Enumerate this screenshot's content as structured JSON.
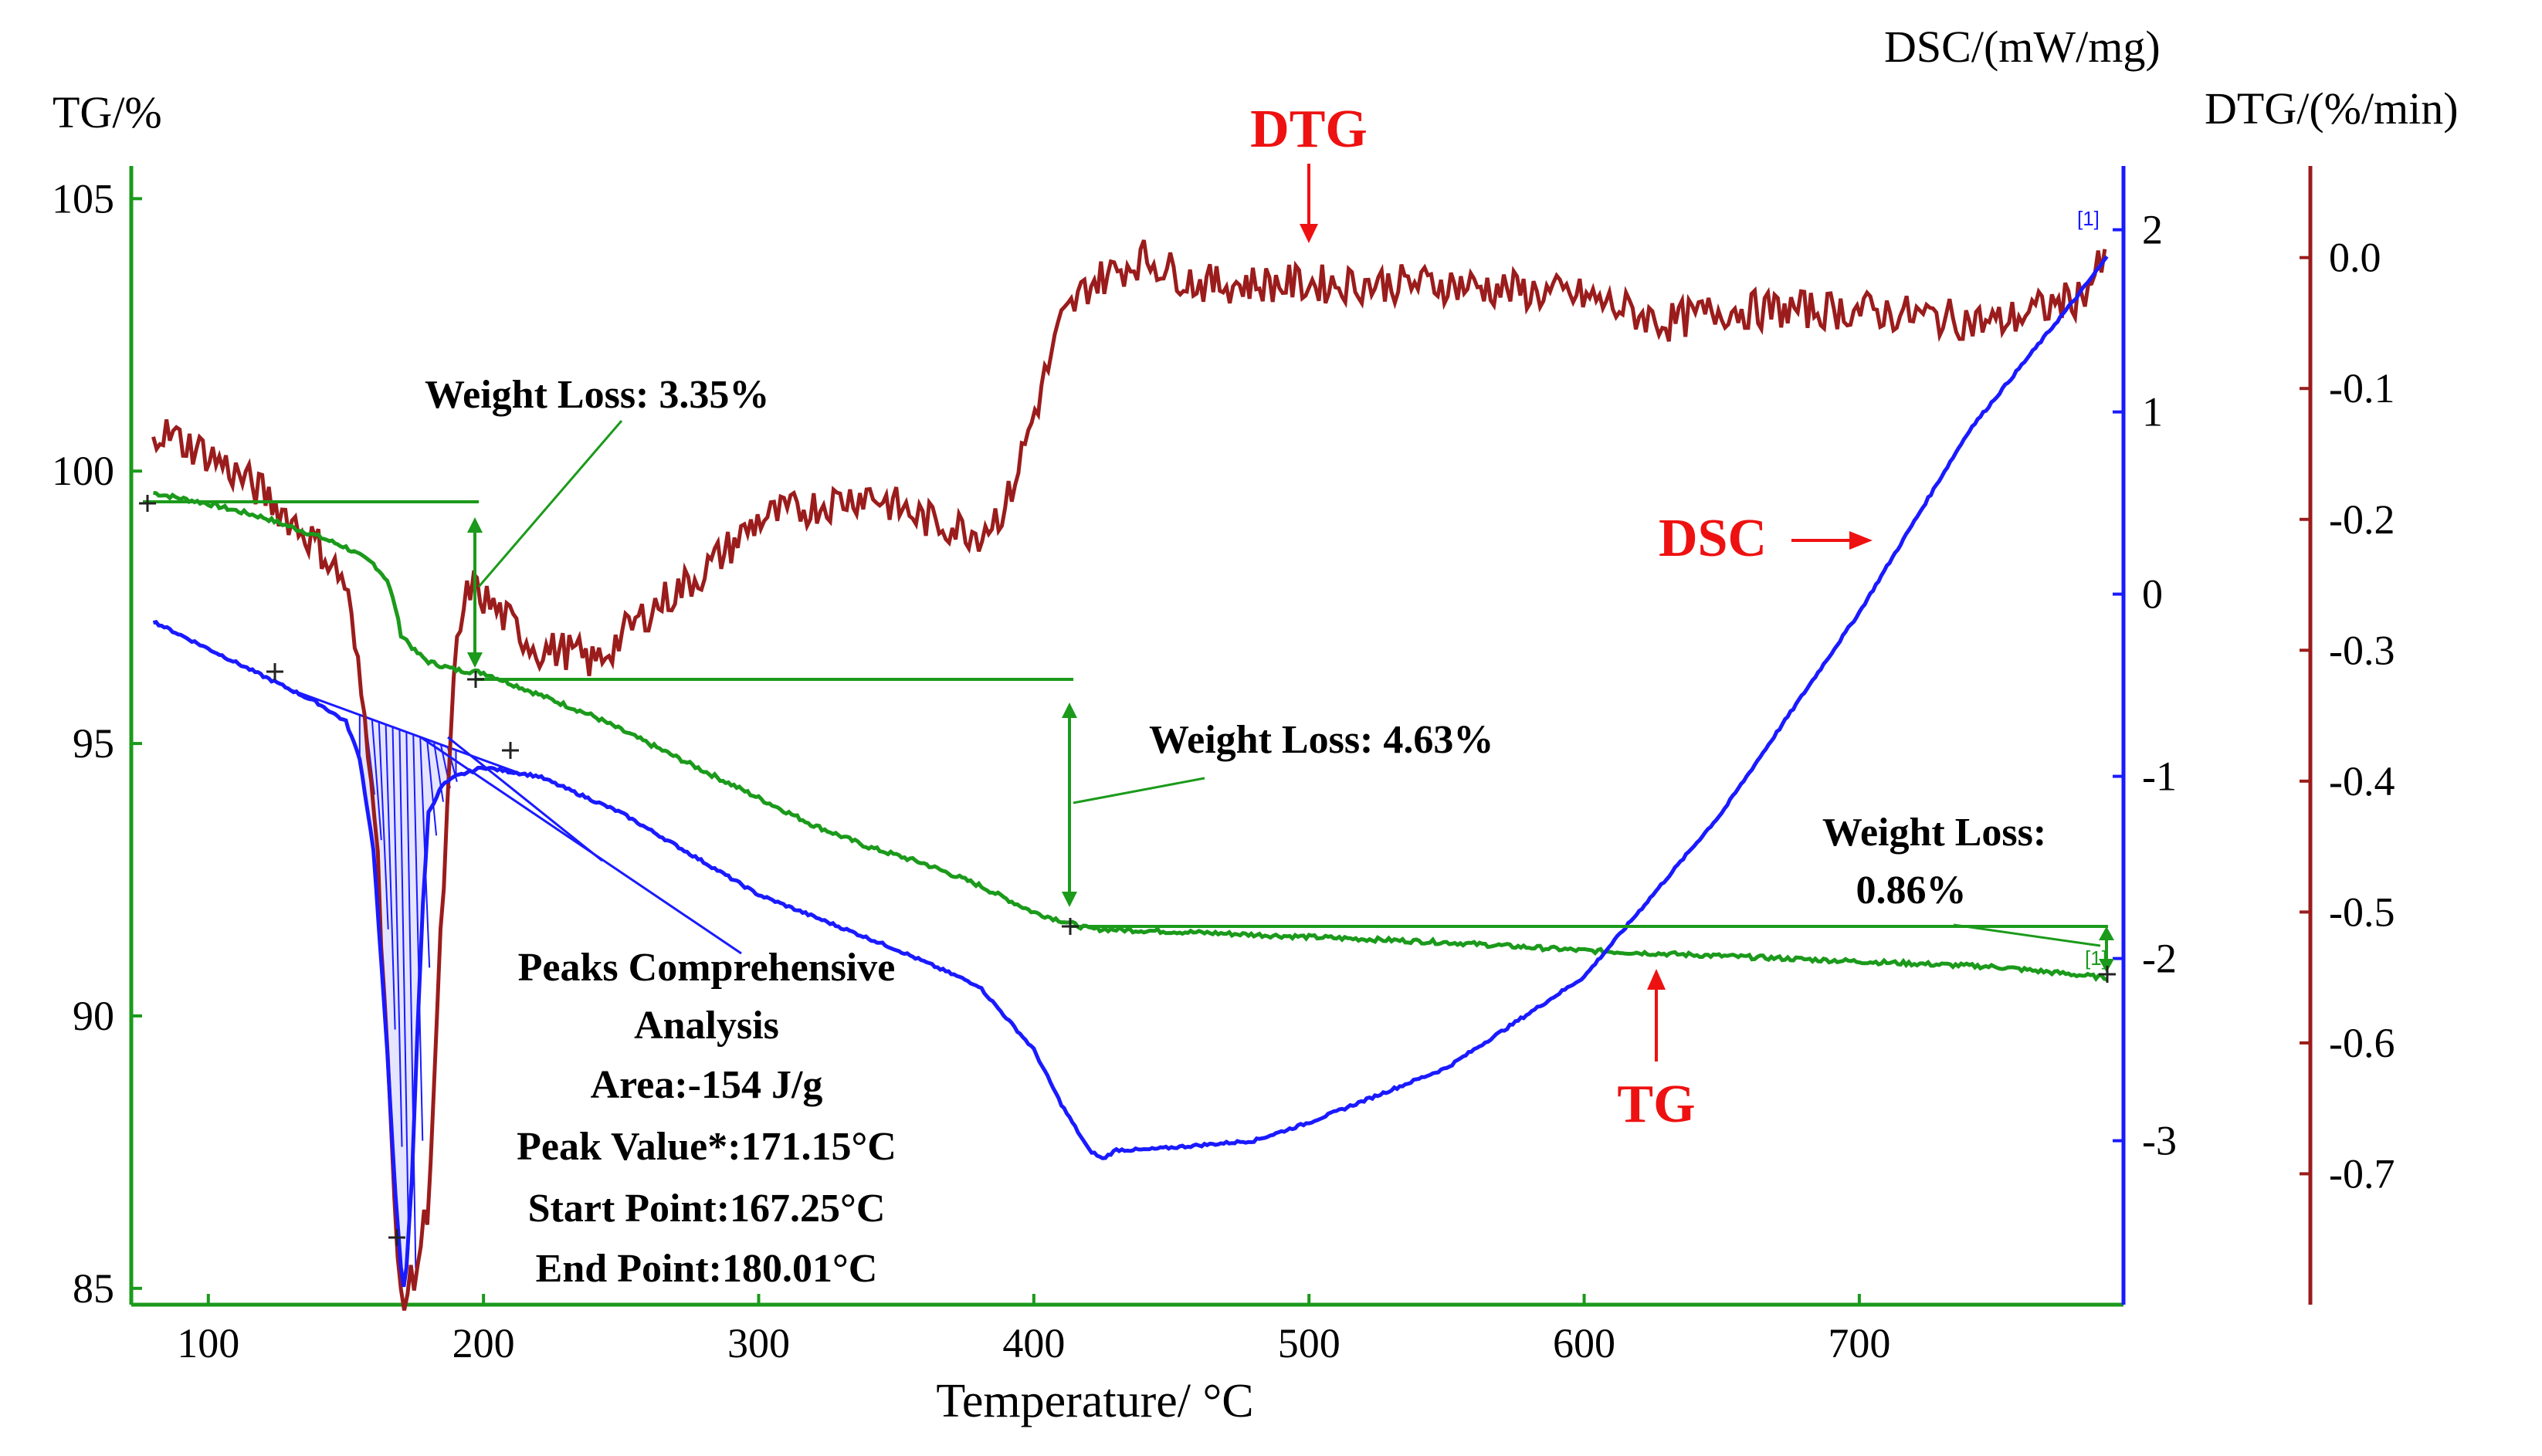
{
  "chart_data": {
    "type": "line",
    "x_axis": {
      "label": "Temperature/ °C",
      "ticks": [
        100,
        200,
        300,
        400,
        500,
        600,
        700
      ],
      "range": [
        72,
        796
      ]
    },
    "axes": {
      "tg": {
        "label": "TG/%",
        "color": "#1b9a1b",
        "ticks": [
          "105",
          "100",
          "95",
          "90",
          "85"
        ],
        "tick_values": [
          105,
          100,
          95,
          90,
          85
        ],
        "range": [
          84.7,
          105.6
        ]
      },
      "dsc": {
        "label": "DSC/(mW/mg)",
        "color": "#1a1aff",
        "ticks": [
          "2",
          "1",
          "0",
          "-1",
          "-2",
          "-3"
        ],
        "tick_values": [
          2,
          1,
          0,
          -1,
          -2,
          -3
        ],
        "range": [
          -3.9,
          2.35
        ]
      },
      "dtg": {
        "label": "DTG/(%/min)",
        "color": "#9b1c1c",
        "ticks": [
          "0.0",
          "-0.1",
          "-0.2",
          "-0.3",
          "-0.4",
          "-0.5",
          "-0.6",
          "-0.7"
        ],
        "tick_values": [
          0.0,
          -0.1,
          -0.2,
          -0.3,
          -0.4,
          -0.5,
          -0.6,
          -0.7
        ],
        "range": [
          -0.8,
          0.07
        ]
      }
    },
    "series": [
      {
        "name": "TG",
        "color": "#1b9a1b",
        "x": [
          80,
          100,
          120,
          140,
          150,
          160,
          165,
          168,
          170,
          172,
          175,
          180,
          190,
          200,
          220,
          240,
          260,
          280,
          300,
          320,
          340,
          360,
          380,
          400,
          410,
          420,
          450,
          500,
          550,
          600,
          650,
          700,
          750,
          790
        ],
        "y": [
          99.6,
          99.4,
          99.15,
          98.8,
          98.6,
          98.3,
          98.0,
          97.5,
          97.0,
          96.9,
          96.7,
          96.5,
          96.35,
          96.3,
          95.9,
          95.5,
          95.0,
          94.5,
          94.0,
          93.5,
          93.1,
          92.8,
          92.4,
          91.9,
          91.75,
          91.6,
          91.55,
          91.45,
          91.35,
          91.2,
          91.1,
          91.0,
          90.9,
          90.7
        ]
      },
      {
        "name": "DSC",
        "color": "#1a1aff",
        "x": [
          80,
          100,
          120,
          140,
          150,
          155,
          160,
          165,
          168,
          170,
          171,
          172,
          174,
          176,
          178,
          180,
          185,
          190,
          200,
          220,
          250,
          300,
          350,
          380,
          400,
          410,
          420,
          425,
          430,
          440,
          480,
          500,
          550,
          600,
          650,
          700,
          740,
          780,
          790
        ],
        "y": [
          -0.15,
          -0.3,
          -0.45,
          -0.6,
          -0.7,
          -0.9,
          -1.4,
          -2.5,
          -3.3,
          -3.7,
          -3.8,
          -3.7,
          -3.2,
          -2.4,
          -1.7,
          -1.2,
          -1.05,
          -1.0,
          -0.95,
          -1.0,
          -1.2,
          -1.65,
          -1.95,
          -2.15,
          -2.5,
          -2.8,
          -3.05,
          -3.1,
          -3.05,
          -3.05,
          -3.0,
          -2.9,
          -2.6,
          -2.1,
          -1.2,
          -0.1,
          0.9,
          1.65,
          1.85
        ]
      },
      {
        "name": "DTG",
        "color": "#9b1c1c",
        "x": [
          80,
          100,
          120,
          140,
          150,
          160,
          165,
          168,
          170,
          172,
          175,
          180,
          185,
          190,
          195,
          200,
          210,
          220,
          230,
          240,
          250,
          260,
          280,
          300,
          320,
          340,
          360,
          380,
          390,
          400,
          410,
          420,
          440,
          460,
          500,
          550,
          600,
          630,
          650,
          700,
          750,
          780,
          790
        ],
        "y": [
          -0.13,
          -0.15,
          -0.18,
          -0.22,
          -0.25,
          -0.4,
          -0.6,
          -0.75,
          -0.79,
          -0.79,
          -0.78,
          -0.72,
          -0.5,
          -0.3,
          -0.25,
          -0.26,
          -0.28,
          -0.3,
          -0.3,
          -0.31,
          -0.29,
          -0.27,
          -0.24,
          -0.2,
          -0.19,
          -0.18,
          -0.2,
          -0.21,
          -0.19,
          -0.12,
          -0.05,
          -0.02,
          0.0,
          -0.02,
          -0.02,
          -0.02,
          -0.03,
          -0.05,
          -0.04,
          -0.04,
          -0.05,
          -0.03,
          0.0
        ]
      }
    ],
    "markers": {
      "dtg_label": "DTG",
      "dsc_label": "DSC",
      "tg_label": "TG",
      "bracket_tag": "[1]"
    },
    "annotations": {
      "loss1": "Weight Loss: 3.35%",
      "loss2": "Weight Loss: 4.63%",
      "loss3_line1": "Weight Loss:",
      "loss3_line2": "0.86%",
      "peaks": [
        "Peaks Comprehensive",
        "Analysis",
        "Area:-154 J/g",
        "Peak Value*:171.15°C",
        "Start Point:167.25°C",
        "End Point:180.01°C"
      ]
    }
  }
}
